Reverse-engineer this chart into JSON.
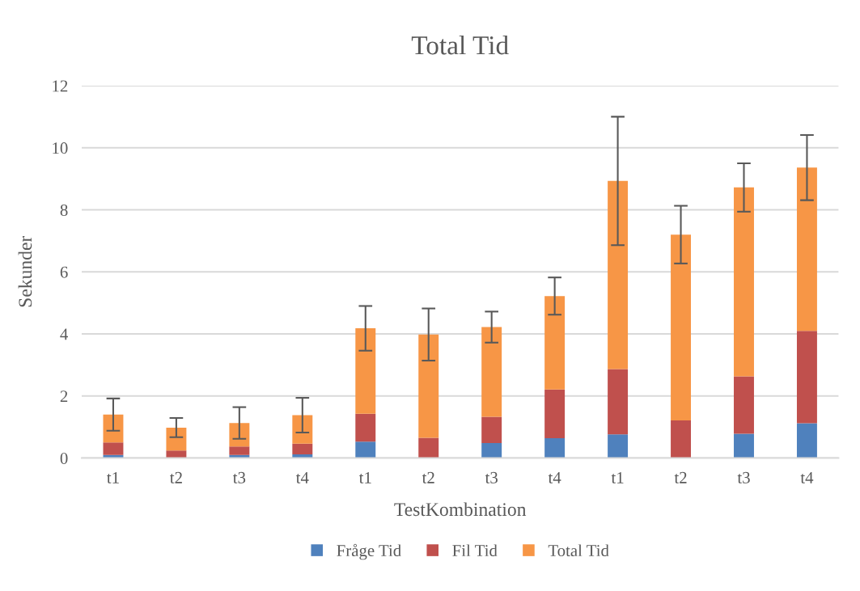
{
  "chart_data": {
    "type": "bar",
    "title": "Total Tid",
    "xlabel": "TestKombination",
    "ylabel": "Sekunder",
    "categories": [
      "t1",
      "t2",
      "t3",
      "t4",
      "t1",
      "t2",
      "t3",
      "t4",
      "t1",
      "t2",
      "t3",
      "t4"
    ],
    "stacked": true,
    "series": [
      {
        "name": "Fråge Tid",
        "color": "#4f81bd",
        "values": [
          0.1,
          0,
          0.1,
          0.12,
          0.53,
          0,
          0.48,
          0.64,
          0.76,
          0,
          0.78,
          1.12
        ]
      },
      {
        "name": "Fil Tid",
        "color": "#c0504d",
        "values": [
          0.4,
          0.24,
          0.27,
          0.34,
          0.9,
          0.65,
          0.85,
          1.57,
          2.11,
          1.21,
          1.85,
          2.98
        ]
      },
      {
        "name": "Total Tid",
        "color": "#f79646",
        "values": [
          0.9,
          0.74,
          0.76,
          0.92,
          2.75,
          3.33,
          2.89,
          3.01,
          6.06,
          5.99,
          6.09,
          5.26
        ],
        "errors": [
          0.52,
          0.31,
          0.51,
          0.56,
          0.72,
          0.84,
          0.5,
          0.6,
          2.07,
          0.93,
          0.78,
          1.05
        ]
      }
    ],
    "ylim": [
      0,
      12
    ],
    "yticks": [
      0,
      2,
      4,
      6,
      8,
      10,
      12
    ],
    "grid": "y",
    "legend": "bottom"
  }
}
